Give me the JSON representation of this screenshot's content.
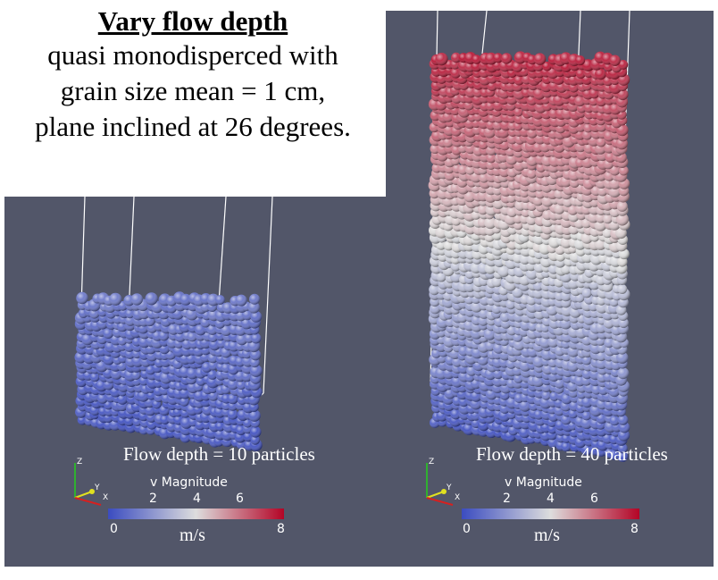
{
  "title_box": {
    "heading": "Vary flow depth",
    "lines": [
      "quasi monodisperced with",
      "grain size mean = 1 cm,",
      "plane inclined at 26 degrees."
    ]
  },
  "panels": [
    {
      "caption": "Flow depth = 10 particles",
      "colorbar": {
        "title": "v Magnitude",
        "unit": "m/s",
        "min_label": "0",
        "max_label": "8",
        "ticks": [
          "2",
          "4",
          "6"
        ],
        "range": [
          0,
          8
        ]
      },
      "axes": {
        "z": "Z",
        "y": "Y",
        "x": "X"
      },
      "speed_range": [
        0.3,
        1.2
      ]
    },
    {
      "caption": "Flow depth = 40 particles",
      "colorbar": {
        "title": "v Magnitude",
        "unit": "m/s",
        "min_label": "0",
        "max_label": "8",
        "ticks": [
          "2",
          "4",
          "6"
        ],
        "range": [
          0,
          8
        ]
      },
      "axes": {
        "z": "Z",
        "y": "Y",
        "x": "X"
      },
      "speed_range": [
        0.3,
        7.6
      ]
    }
  ],
  "colors": {
    "background": "#525669",
    "colormap_low": "#3b4cc0",
    "colormap_mid": "#dddddd",
    "colormap_high": "#b40426",
    "axis_x": "#d62020",
    "axis_y": "#e0e020",
    "axis_z": "#30b030"
  }
}
